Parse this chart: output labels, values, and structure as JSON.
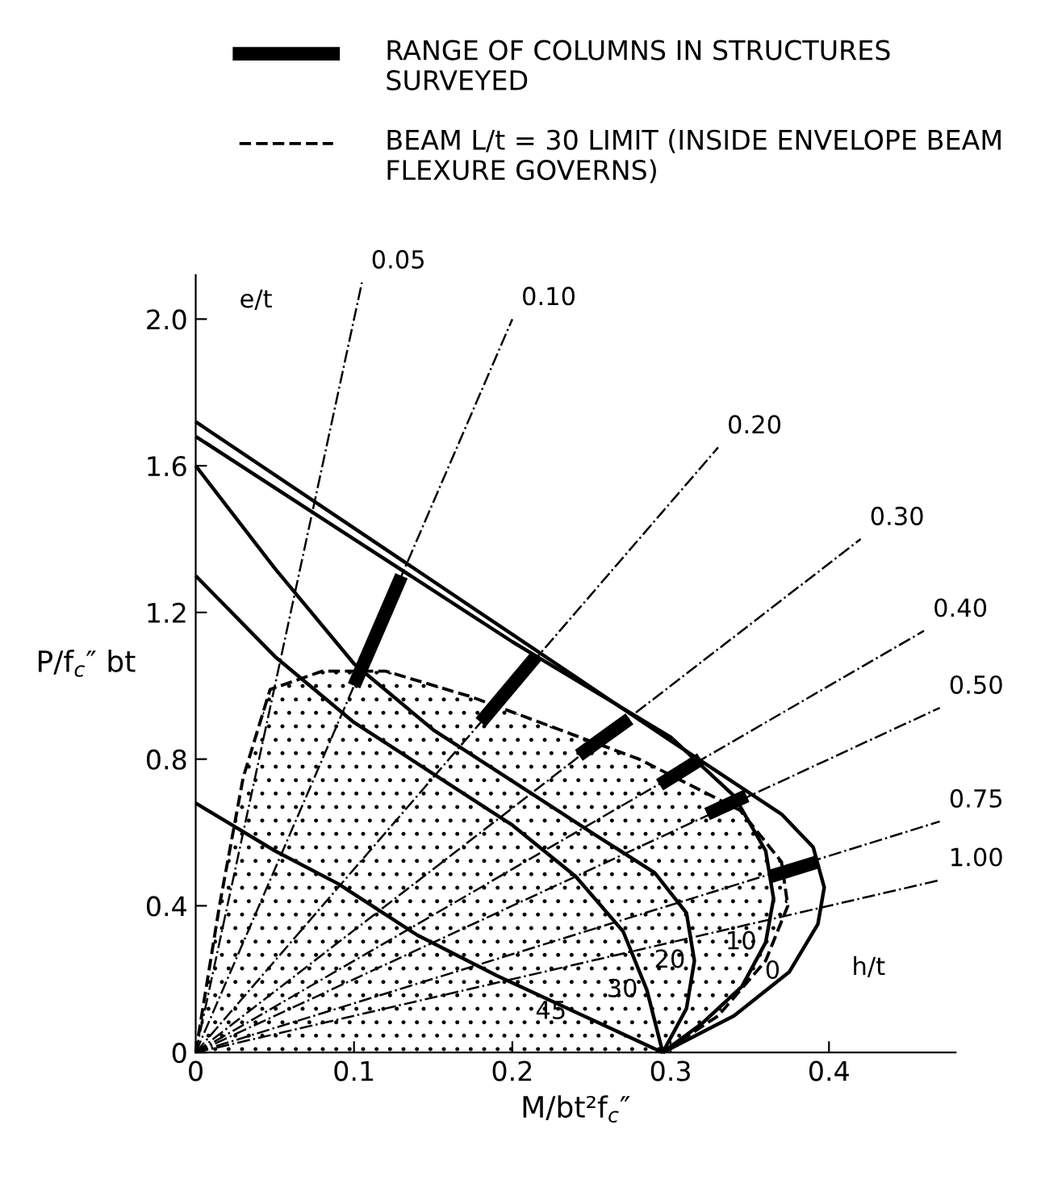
{
  "chart_data": {
    "type": "line",
    "xlabel": "M/bt²f$_{c}$″",
    "ylabel": "P/f$_{c}$″ bt",
    "xlim": [
      0,
      0.48
    ],
    "ylim": [
      0,
      2.12
    ],
    "xticks": [
      0,
      0.1,
      0.2,
      0.3,
      0.4
    ],
    "yticks": [
      0,
      0.4,
      0.8,
      1.2,
      1.6,
      {
        "value": 2.0,
        "label": "2.0"
      }
    ],
    "grid": false,
    "legend": "top",
    "marker": "none",
    "annotations": [
      "e/t",
      "h/t",
      {
        "text": "0",
        "x": 0.375,
        "y": 0.22
      },
      {
        "text": "10",
        "x": 0.36,
        "y": 0.3
      },
      {
        "text": "20",
        "x": 0.315,
        "y": 0.25
      },
      {
        "text": "30",
        "x": 0.285,
        "y": 0.17
      },
      {
        "text": "45",
        "x": 0.24,
        "y": 0.11
      },
      {
        "text": "0.05",
        "x": 0.105,
        "y": 2.1
      },
      {
        "text": "0.10",
        "x": 0.2,
        "y": 2.0
      },
      {
        "text": "0.20",
        "x": 0.33,
        "y": 1.65
      },
      {
        "text": "0.30",
        "x": 0.42,
        "y": 1.4
      },
      {
        "text": "0.40",
        "x": 0.46,
        "y": 1.15
      },
      {
        "text": "0.50",
        "x": 0.47,
        "y": 0.94
      },
      {
        "text": "0.75",
        "x": 0.47,
        "y": 0.63
      },
      {
        "text": "1.00",
        "x": 0.47,
        "y": 0.47
      }
    ],
    "series": [
      {
        "name": "RANGE OF COLUMNS IN STRUCTURES SURVEYED",
        "color": "#000000",
        "line_style": "solid",
        "x": [
          0.1,
          0.13
        ],
        "values": [
          1.0,
          1.3
        ]
      },
      {
        "type": "area",
        "name": "BEAM L/t = 30 LIMIT (INSIDE ENVELOPE BEAM FLEXURE GOVERNS)",
        "color": "#000000",
        "line_style": "dashed",
        "x": [
          0,
          0.015,
          0.03,
          0.047,
          0.08,
          0.12,
          0.174,
          0.23,
          0.28,
          0.344,
          0.37,
          0.374,
          0.36,
          0.33,
          0.295
        ],
        "values": [
          0,
          0.4,
          0.75,
          0.99,
          1.04,
          1.04,
          0.97,
          0.88,
          0.8,
          0.66,
          0.52,
          0.4,
          0.25,
          0.1,
          0
        ]
      },
      {
        "color": "#000000",
        "line_style": "solid",
        "x": [
          0.18,
          0.215
        ],
        "values": [
          0.9,
          1.08
        ]
      },
      {
        "color": "#000000",
        "line_style": "solid",
        "x": [
          0.242,
          0.274
        ],
        "values": [
          0.81,
          0.91
        ]
      },
      {
        "color": "#000000",
        "line_style": "solid",
        "x": [
          0.293,
          0.319
        ],
        "values": [
          0.73,
          0.8
        ]
      },
      {
        "color": "#000000",
        "line_style": "solid",
        "x": [
          0.323,
          0.348
        ],
        "values": [
          0.65,
          0.7
        ]
      },
      {
        "color": "#000000",
        "line_style": "solid",
        "x": [
          0.363,
          0.393
        ],
        "values": [
          0.48,
          0.52
        ]
      },
      {
        "color": "#000000",
        "line_style": "solid",
        "x": [
          0,
          0.1,
          0.2,
          0.3,
          0.37,
          0.39,
          0.397,
          0.393,
          0.375,
          0.34,
          0.295
        ],
        "values": [
          1.72,
          1.43,
          1.14,
          0.85,
          0.65,
          0.56,
          0.45,
          0.35,
          0.22,
          0.1,
          0
        ]
      },
      {
        "color": "#000000",
        "line_style": "solid",
        "x": [
          0,
          0.1,
          0.2,
          0.3,
          0.34,
          0.36,
          0.365,
          0.36,
          0.345,
          0.32,
          0.295
        ],
        "values": [
          1.68,
          1.4,
          1.12,
          0.86,
          0.7,
          0.55,
          0.42,
          0.3,
          0.18,
          0.08,
          0
        ]
      },
      {
        "color": "#000000",
        "line_style": "solid",
        "x": [
          0,
          0.05,
          0.1,
          0.15,
          0.2,
          0.25,
          0.29,
          0.31,
          0.315,
          0.31,
          0.295
        ],
        "values": [
          1.6,
          1.32,
          1.06,
          0.88,
          0.74,
          0.6,
          0.49,
          0.38,
          0.25,
          0.12,
          0
        ]
      },
      {
        "color": "#000000",
        "line_style": "solid",
        "x": [
          0,
          0.05,
          0.1,
          0.15,
          0.2,
          0.24,
          0.27,
          0.285,
          0.295
        ],
        "values": [
          1.3,
          1.08,
          0.9,
          0.76,
          0.62,
          0.48,
          0.33,
          0.17,
          0
        ]
      },
      {
        "color": "#000000",
        "line_style": "solid",
        "x": [
          0,
          0.05,
          0.09,
          0.14,
          0.19,
          0.24,
          0.295
        ],
        "values": [
          0.68,
          0.55,
          0.46,
          0.32,
          0.21,
          0.11,
          0
        ]
      },
      {
        "color": "#000000",
        "line_style": "dashdot",
        "x": [
          0,
          0.105
        ],
        "values": [
          0,
          2.1
        ]
      },
      {
        "color": "#000000",
        "line_style": "dashdot",
        "x": [
          0,
          0.2
        ],
        "values": [
          0,
          2.0
        ]
      },
      {
        "color": "#000000",
        "line_style": "dashdot",
        "x": [
          0,
          0.33
        ],
        "values": [
          0,
          1.65
        ]
      },
      {
        "color": "#000000",
        "line_style": "dashdot",
        "x": [
          0,
          0.42
        ],
        "values": [
          0,
          1.4
        ]
      },
      {
        "color": "#000000",
        "line_style": "dashdot",
        "x": [
          0,
          0.46
        ],
        "values": [
          0,
          1.15
        ]
      },
      {
        "color": "#000000",
        "line_style": "dashdot",
        "x": [
          0,
          0.47
        ],
        "values": [
          0,
          0.94
        ]
      },
      {
        "color": "#000000",
        "line_style": "dashdot",
        "x": [
          0,
          0.47
        ],
        "values": [
          0,
          0.63
        ]
      },
      {
        "color": "#000000",
        "line_style": "dashdot",
        "x": [
          0,
          0.47
        ],
        "values": [
          0,
          0.47
        ]
      }
    ]
  }
}
